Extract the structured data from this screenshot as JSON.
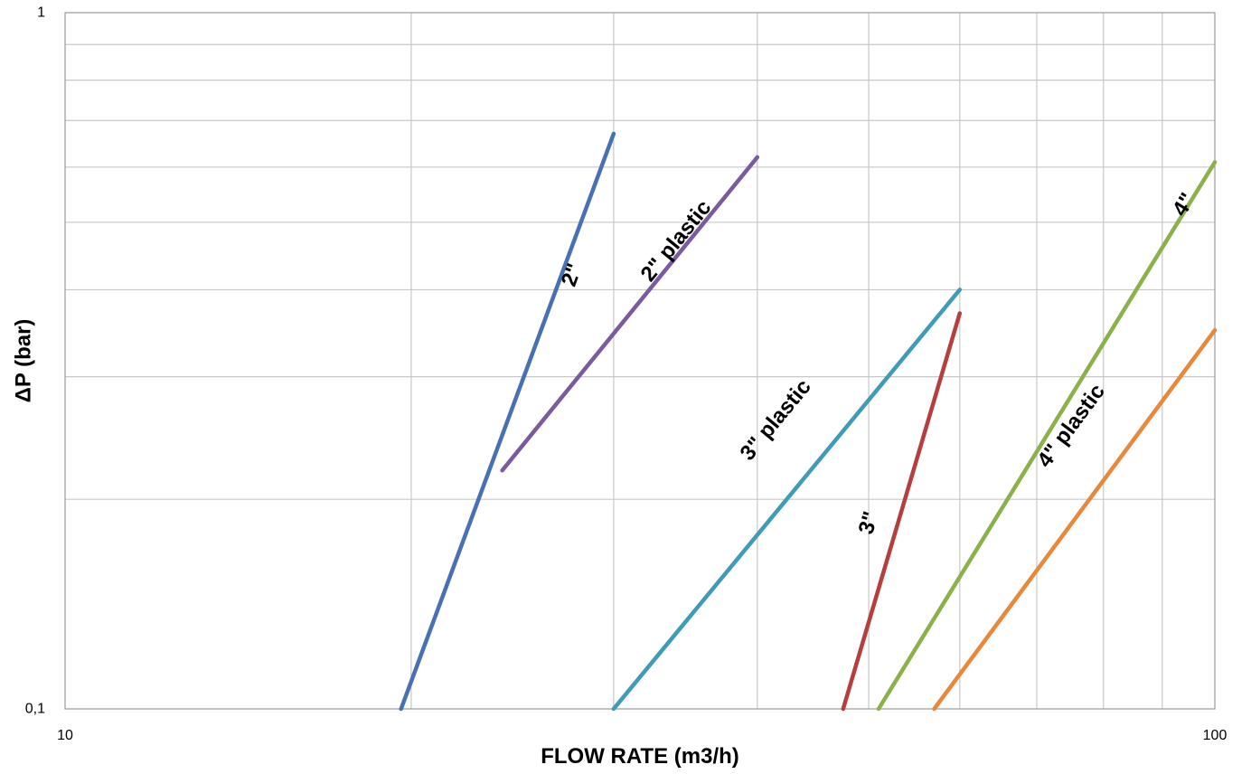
{
  "chart_data": {
    "type": "line",
    "title": "",
    "xlabel": "FLOW RATE (m3/h)",
    "ylabel": "ΔP (bar)",
    "xscale": "log",
    "yscale": "log",
    "xlim": [
      10,
      100
    ],
    "ylim": [
      0.1,
      1
    ],
    "xticks": [
      {
        "value": 10,
        "label": "10"
      },
      {
        "value": 100,
        "label": "100"
      }
    ],
    "yticks": [
      {
        "value": 0.1,
        "label": "0,1"
      },
      {
        "value": 1,
        "label": "1"
      }
    ],
    "grid": true,
    "legend": "inline labels",
    "series": [
      {
        "name": "2\"",
        "color": "#4672b4",
        "points": [
          [
            19.6,
            0.1
          ],
          [
            30,
            0.67
          ]
        ],
        "label_at": [
          27.6,
          0.42
        ]
      },
      {
        "name": "2\" plastic",
        "color": "#7b5a9f",
        "points": [
          [
            24,
            0.22
          ],
          [
            40,
            0.62
          ]
        ],
        "label_at": [
          34,
          0.47
        ]
      },
      {
        "name": "3\" plastic",
        "color": "#3e9cb8",
        "points": [
          [
            30,
            0.1
          ],
          [
            60,
            0.4
          ]
        ],
        "label_at": [
          41.5,
          0.26
        ]
      },
      {
        "name": "3\"",
        "color": "#b53f3d",
        "points": [
          [
            47.5,
            0.1
          ],
          [
            60,
            0.37
          ]
        ],
        "label_at": [
          50,
          0.185
        ]
      },
      {
        "name": "4\"",
        "color": "#8ab14a",
        "points": [
          [
            51,
            0.1
          ],
          [
            100,
            0.61
          ]
        ],
        "label_at": [
          94,
          0.53
        ]
      },
      {
        "name": "4\" plastic",
        "color": "#e8883a",
        "points": [
          [
            57,
            0.1
          ],
          [
            100,
            0.35
          ]
        ],
        "label_at": [
          75,
          0.255
        ]
      }
    ]
  }
}
